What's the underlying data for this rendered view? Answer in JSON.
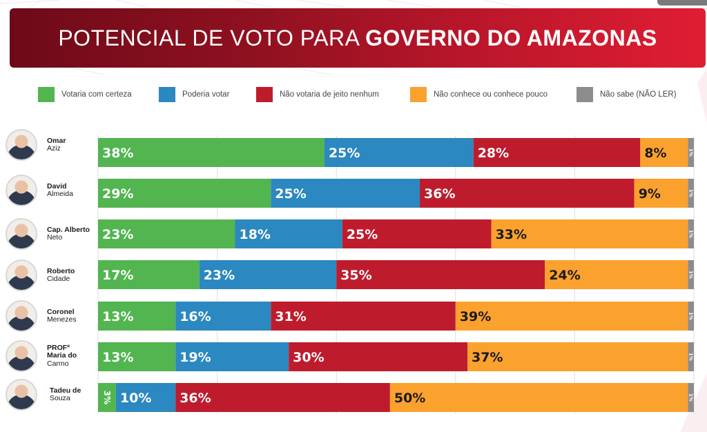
{
  "title": {
    "light": "POTENCIAL DE VOTO PARA ",
    "bold": "GOVERNO DO AMAZONAS"
  },
  "colors": {
    "votaria": "#52b550",
    "poderia": "#2b88c0",
    "nao_votaria": "#be1c2d",
    "nao_conhece": "#fba12e",
    "nao_sabe": "#8c8c8e",
    "title_gradient_start": "#6e0a18",
    "title_gradient_end": "#e01d33"
  },
  "legend": [
    {
      "key": "votaria",
      "label": "Votaria com certeza"
    },
    {
      "key": "poderia",
      "label": "Poderia votar"
    },
    {
      "key": "nao_votaria",
      "label": "Não votaria de jeito nenhum"
    },
    {
      "key": "nao_conhece",
      "label": "Não conhece ou conhece pouco"
    },
    {
      "key": "nao_sabe",
      "label": "Não sabe (NÃO LER)"
    }
  ],
  "candidates": [
    {
      "first": "Omar",
      "last": "Aziz"
    },
    {
      "first": "David",
      "last": "Almeida"
    },
    {
      "first": "Cap. Alberto",
      "last": "Neto"
    },
    {
      "first": "Roberto",
      "last": "Cidade"
    },
    {
      "first": "Coronel",
      "last": "Menezes"
    },
    {
      "first": "PROFª Maria do",
      "last": "Carmo"
    },
    {
      "first": "Tadeu de",
      "last": "Souza"
    }
  ],
  "chart_data": {
    "type": "bar",
    "orientation": "horizontal",
    "stacked": true,
    "title": "POTENCIAL DE VOTO PARA GOVERNO DO AMAZONAS",
    "categories": [
      "Omar Aziz",
      "David Almeida",
      "Cap. Alberto Neto",
      "Roberto Cidade",
      "Coronel Menezes",
      "PROFª Maria do Carmo",
      "Tadeu de Souza"
    ],
    "series": [
      {
        "name": "Votaria com certeza",
        "key": "votaria",
        "values": [
          38,
          29,
          23,
          17,
          13,
          13,
          3
        ]
      },
      {
        "name": "Poderia votar",
        "key": "poderia",
        "values": [
          25,
          25,
          18,
          23,
          16,
          19,
          10
        ]
      },
      {
        "name": "Não votaria de jeito nenhum",
        "key": "nao_votaria",
        "values": [
          28,
          36,
          25,
          35,
          31,
          30,
          36
        ]
      },
      {
        "name": "Não conhece ou conhece pouco",
        "key": "nao_conhece",
        "values": [
          8,
          9,
          33,
          24,
          39,
          37,
          50
        ]
      },
      {
        "name": "Não sabe (NÃO LER)",
        "key": "nao_sabe",
        "values": [
          1,
          1,
          1,
          1,
          1,
          1,
          1
        ]
      }
    ],
    "value_suffix": "%",
    "xlim": [
      0,
      100
    ],
    "grid": true,
    "grid_step": 20,
    "legend_position": "top",
    "xlabel": "",
    "ylabel": ""
  }
}
